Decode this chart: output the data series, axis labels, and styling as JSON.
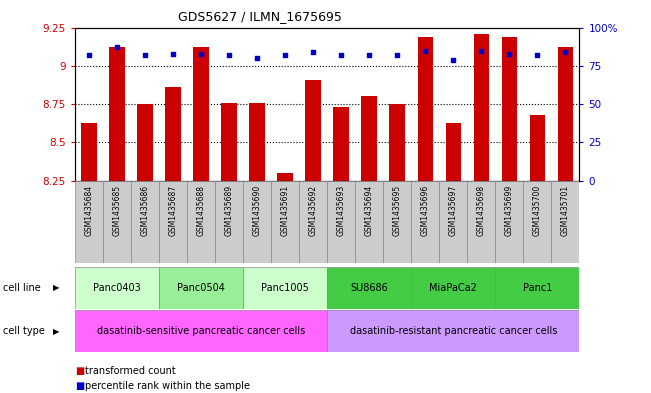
{
  "title": "GDS5627 / ILMN_1675695",
  "samples": [
    "GSM1435684",
    "GSM1435685",
    "GSM1435686",
    "GSM1435687",
    "GSM1435688",
    "GSM1435689",
    "GSM1435690",
    "GSM1435691",
    "GSM1435692",
    "GSM1435693",
    "GSM1435694",
    "GSM1435695",
    "GSM1435696",
    "GSM1435697",
    "GSM1435698",
    "GSM1435699",
    "GSM1435700",
    "GSM1435701"
  ],
  "bar_values": [
    8.63,
    9.12,
    8.75,
    8.86,
    9.12,
    8.76,
    8.76,
    8.3,
    8.91,
    8.73,
    8.8,
    8.75,
    9.19,
    8.63,
    9.21,
    9.19,
    8.68,
    9.12
  ],
  "dot_values": [
    82,
    87,
    82,
    83,
    83,
    82,
    80,
    82,
    84,
    82,
    82,
    82,
    85,
    79,
    85,
    83,
    82,
    84
  ],
  "ylim": [
    8.25,
    9.25
  ],
  "yticks": [
    8.25,
    8.5,
    8.75,
    9.0,
    9.25
  ],
  "ytick_labels": [
    "8.25",
    "8.5",
    "8.75",
    "9",
    "9.25"
  ],
  "right_ytick_labels": [
    "0",
    "25",
    "50",
    "75",
    "100%"
  ],
  "grid_lines": [
    9.0,
    8.75,
    8.5
  ],
  "bar_color": "#cc0000",
  "dot_color": "#0000cc",
  "cell_lines": [
    {
      "label": "Panc0403",
      "start": 0,
      "end": 2,
      "color": "#ccffcc"
    },
    {
      "label": "Panc0504",
      "start": 3,
      "end": 5,
      "color": "#99ee99"
    },
    {
      "label": "Panc1005",
      "start": 6,
      "end": 8,
      "color": "#ccffcc"
    },
    {
      "label": "SU8686",
      "start": 9,
      "end": 11,
      "color": "#44cc44"
    },
    {
      "label": "MiaPaCa2",
      "start": 12,
      "end": 14,
      "color": "#44cc44"
    },
    {
      "label": "Panc1",
      "start": 15,
      "end": 17,
      "color": "#44cc44"
    }
  ],
  "cell_types": [
    {
      "label": "dasatinib-sensitive pancreatic cancer cells",
      "start": 0,
      "end": 8,
      "color": "#ff66ff"
    },
    {
      "label": "dasatinib-resistant pancreatic cancer cells",
      "start": 9,
      "end": 17,
      "color": "#cc99ff"
    }
  ],
  "legend_bar_label": "transformed count",
  "legend_dot_label": "percentile rank within the sample",
  "cell_line_label": "cell line",
  "cell_type_label": "cell type",
  "xtick_bg_color": "#cccccc"
}
